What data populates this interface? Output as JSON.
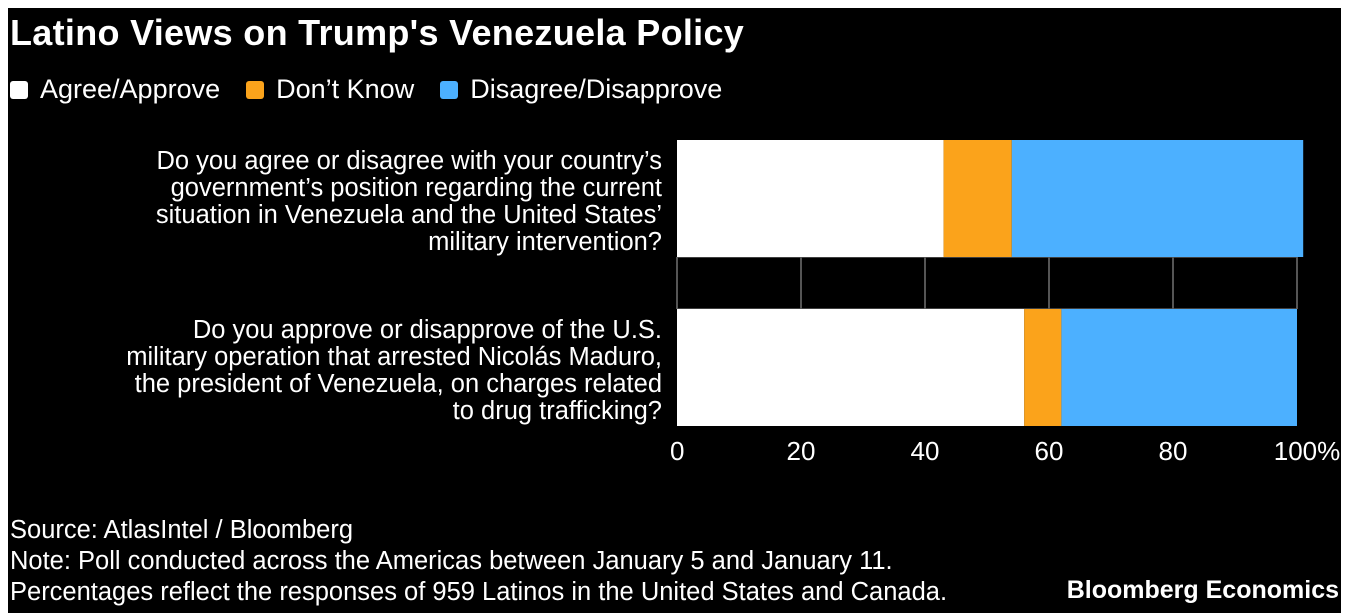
{
  "chart_data": {
    "type": "bar",
    "orientation": "horizontal",
    "stacked": true,
    "title": "Latino Views on Trump's Venezuela Policy",
    "categories": [
      "Do you agree or disagree with your country’s government’s position regarding the current situation in Venezuela and the United States’ military intervention?",
      "Do you approve or disapprove of the U.S. military operation that arrested Nicolás Maduro, the president of Venezuela, on charges related to drug trafficking?"
    ],
    "category_lines": [
      [
        "Do you agree or disagree with your country’s",
        "government’s position regarding the current",
        "situation in Venezuela and the United States’",
        "military intervention?"
      ],
      [
        "Do you approve or disapprove of the U.S.",
        "military operation that arrested Nicolás Maduro,",
        "the president of Venezuela, on charges related",
        "to drug trafficking?"
      ]
    ],
    "series": [
      {
        "name": "Agree/Approve",
        "color": "#ffffff",
        "values": [
          43,
          56
        ]
      },
      {
        "name": "Don’t Know",
        "color": "#fba31b",
        "values": [
          11,
          6
        ]
      },
      {
        "name": "Disagree/Disapprove",
        "color": "#4cb0ff",
        "values": [
          47,
          38
        ]
      }
    ],
    "xlim": [
      0,
      100
    ],
    "xticks": [
      "0",
      "20",
      "40",
      "60",
      "80",
      "100%"
    ],
    "grid": true,
    "legend": "top-left"
  },
  "footer": {
    "source": "Source: AtlasIntel / Bloomberg",
    "note": "Note: Poll conducted across the Americas between January 5 and January 11.",
    "note2": "Percentages reflect the responses of 959 Latinos in the United States and Canada.",
    "brand": "Bloomberg Economics"
  }
}
